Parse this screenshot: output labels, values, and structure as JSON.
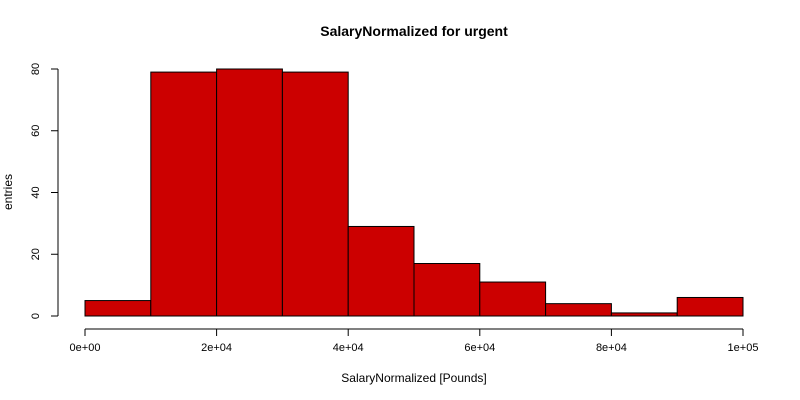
{
  "chart_data": {
    "type": "bar",
    "title": "SalaryNormalized for urgent",
    "xlabel": "SalaryNormalized [Pounds]",
    "ylabel": "entries",
    "x_tick_labels": [
      "0e+00",
      "2e+04",
      "4e+04",
      "6e+04",
      "8e+04",
      "1e+05"
    ],
    "x_ticks": [
      0,
      20000,
      40000,
      60000,
      80000,
      100000
    ],
    "y_ticks": [
      0,
      20,
      40,
      60,
      80
    ],
    "xlim": [
      0,
      100000
    ],
    "ylim": [
      0,
      80
    ],
    "bins": [
      {
        "start": 0,
        "end": 10000,
        "count": 5
      },
      {
        "start": 10000,
        "end": 20000,
        "count": 79
      },
      {
        "start": 20000,
        "end": 30000,
        "count": 80
      },
      {
        "start": 30000,
        "end": 40000,
        "count": 79
      },
      {
        "start": 40000,
        "end": 50000,
        "count": 29
      },
      {
        "start": 50000,
        "end": 60000,
        "count": 17
      },
      {
        "start": 60000,
        "end": 70000,
        "count": 11
      },
      {
        "start": 70000,
        "end": 80000,
        "count": 4
      },
      {
        "start": 80000,
        "end": 90000,
        "count": 1
      },
      {
        "start": 90000,
        "end": 100000,
        "count": 6
      }
    ],
    "bar_color": "#cc0000",
    "bar_border_color": "#000000",
    "grid": false,
    "legend": "none"
  }
}
